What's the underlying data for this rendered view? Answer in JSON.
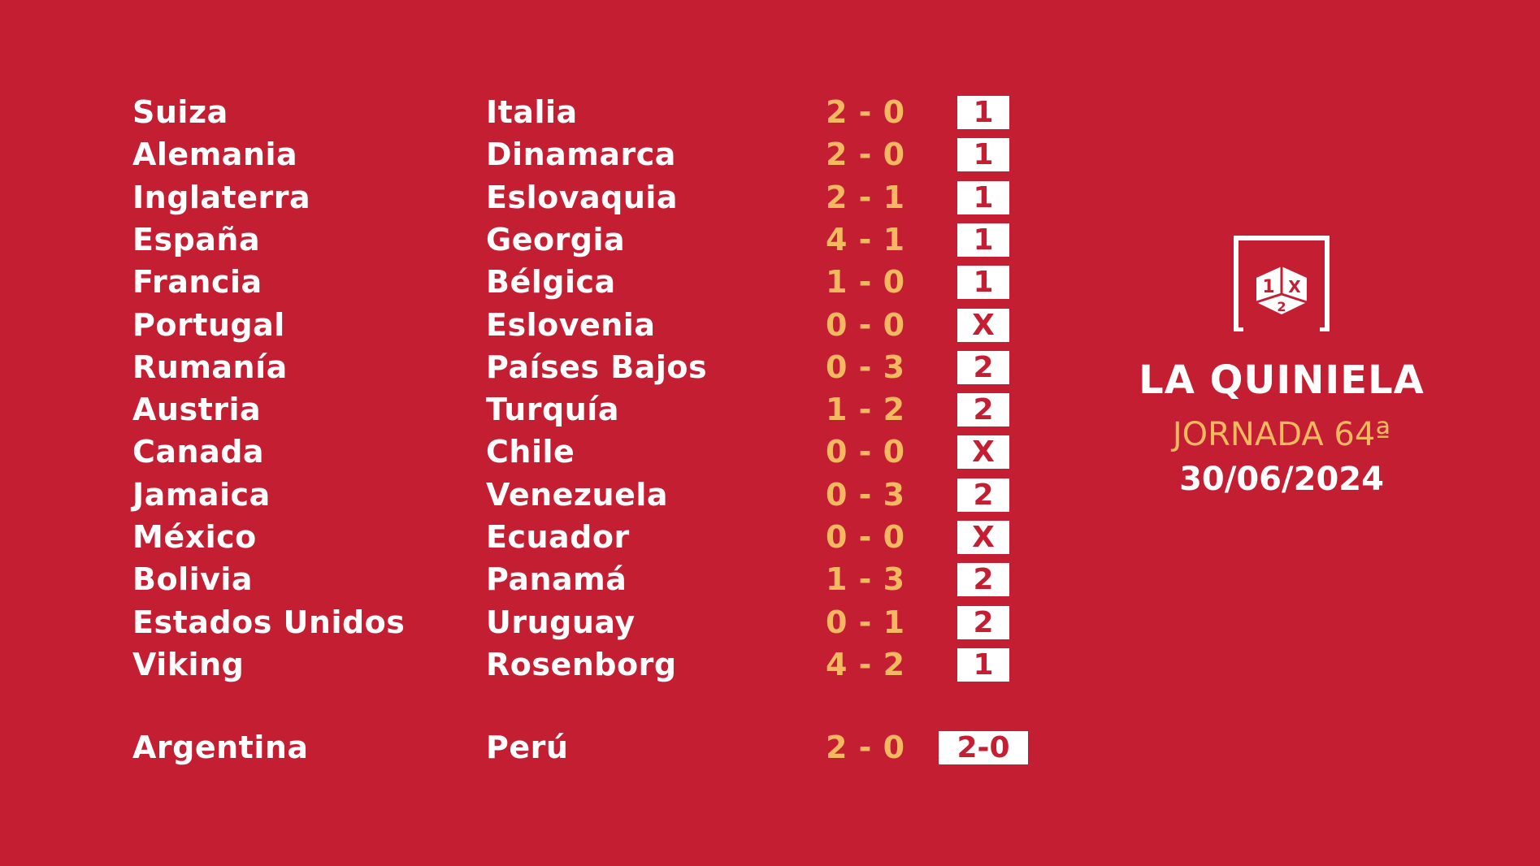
{
  "matches": [
    {
      "home": "Suiza",
      "away": "Italia",
      "score": "2 - 0",
      "sign": "1"
    },
    {
      "home": "Alemania",
      "away": "Dinamarca",
      "score": "2 - 0",
      "sign": "1"
    },
    {
      "home": "Inglaterra",
      "away": "Eslovaquia",
      "score": "2 - 1",
      "sign": "1"
    },
    {
      "home": "España",
      "away": "Georgia",
      "score": "4 - 1",
      "sign": "1"
    },
    {
      "home": "Francia",
      "away": "Bélgica",
      "score": "1 - 0",
      "sign": "1"
    },
    {
      "home": "Portugal",
      "away": "Eslovenia",
      "score": "0 - 0",
      "sign": "X"
    },
    {
      "home": "Rumanía",
      "away": "Países Bajos",
      "score": "0 - 3",
      "sign": "2"
    },
    {
      "home": "Austria",
      "away": "Turquía",
      "score": "1 - 2",
      "sign": "2"
    },
    {
      "home": "Canada",
      "away": "Chile",
      "score": "0 - 0",
      "sign": "X"
    },
    {
      "home": "Jamaica",
      "away": "Venezuela",
      "score": "0 - 3",
      "sign": "2"
    },
    {
      "home": "México",
      "away": "Ecuador",
      "score": "0 - 0",
      "sign": "X"
    },
    {
      "home": "Bolivia",
      "away": "Panamá",
      "score": "1 - 3",
      "sign": "2"
    },
    {
      "home": "Estados Unidos",
      "away": "Uruguay",
      "score": "0 - 1",
      "sign": "2"
    },
    {
      "home": "Viking",
      "away": "Rosenborg",
      "score": "4 - 2",
      "sign": "1"
    }
  ],
  "pleno": {
    "home": "Argentina",
    "away": "Perú",
    "score": "2 - 0",
    "sign": "2-0"
  },
  "brand": {
    "logo_text": "1X2",
    "title": "LA QUINIELA",
    "jornada": "JORNADA 64ª",
    "date": "30/06/2024"
  },
  "colors": {
    "background": "#C41E33",
    "score": "#F4B860",
    "text": "#FFFFFF"
  }
}
